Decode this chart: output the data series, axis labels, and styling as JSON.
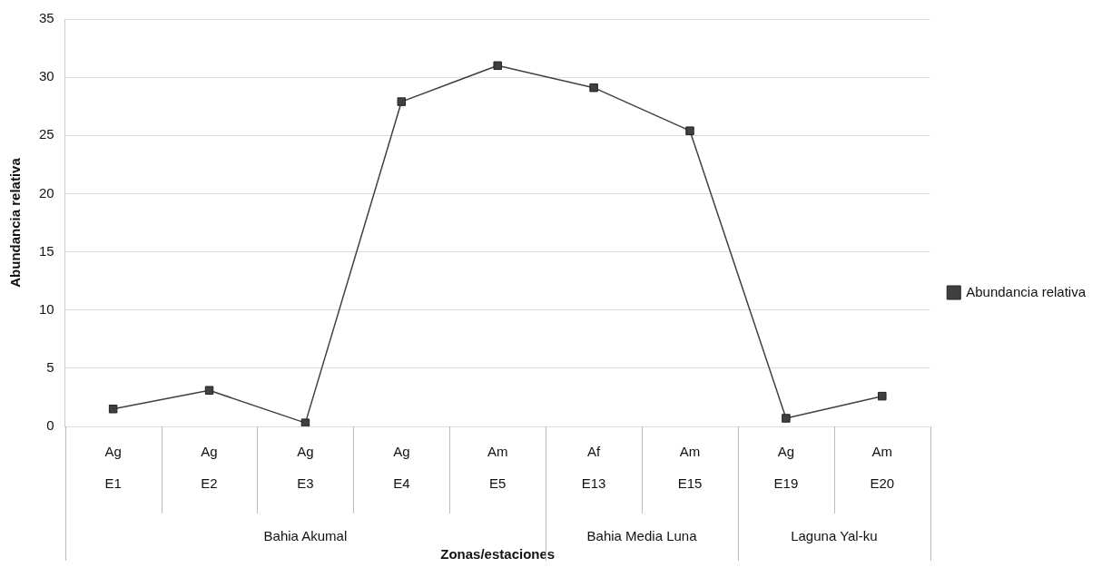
{
  "chart_data": {
    "type": "line",
    "xlabel": "Zonas/estaciones",
    "ylabel": "Abundancia relativa",
    "categories": [
      "Ag\nE1",
      "Ag\nE2",
      "Ag\nE3",
      "Ag\nE4",
      "Am\nE5",
      "Af\nE13",
      "Am\nE15",
      "Ag\nE19",
      "Am\nE20"
    ],
    "annotations": [
      "Bahia Akumal",
      "Bahia Media Luna",
      "Laguna Yal-ku"
    ],
    "series": [
      {
        "name": "Abundancia relativa",
        "color": "#404040",
        "values": [
          1.5,
          3.1,
          0.3,
          27.9,
          31.0,
          29.1,
          25.4,
          0.7,
          2.6
        ]
      }
    ],
    "ylim": [
      0,
      35
    ],
    "yticks": [
      0,
      5,
      10,
      15,
      20,
      25,
      30,
      35
    ],
    "grid": "y",
    "legend": "right",
    "marker": "square",
    "line_style": "solid"
  }
}
